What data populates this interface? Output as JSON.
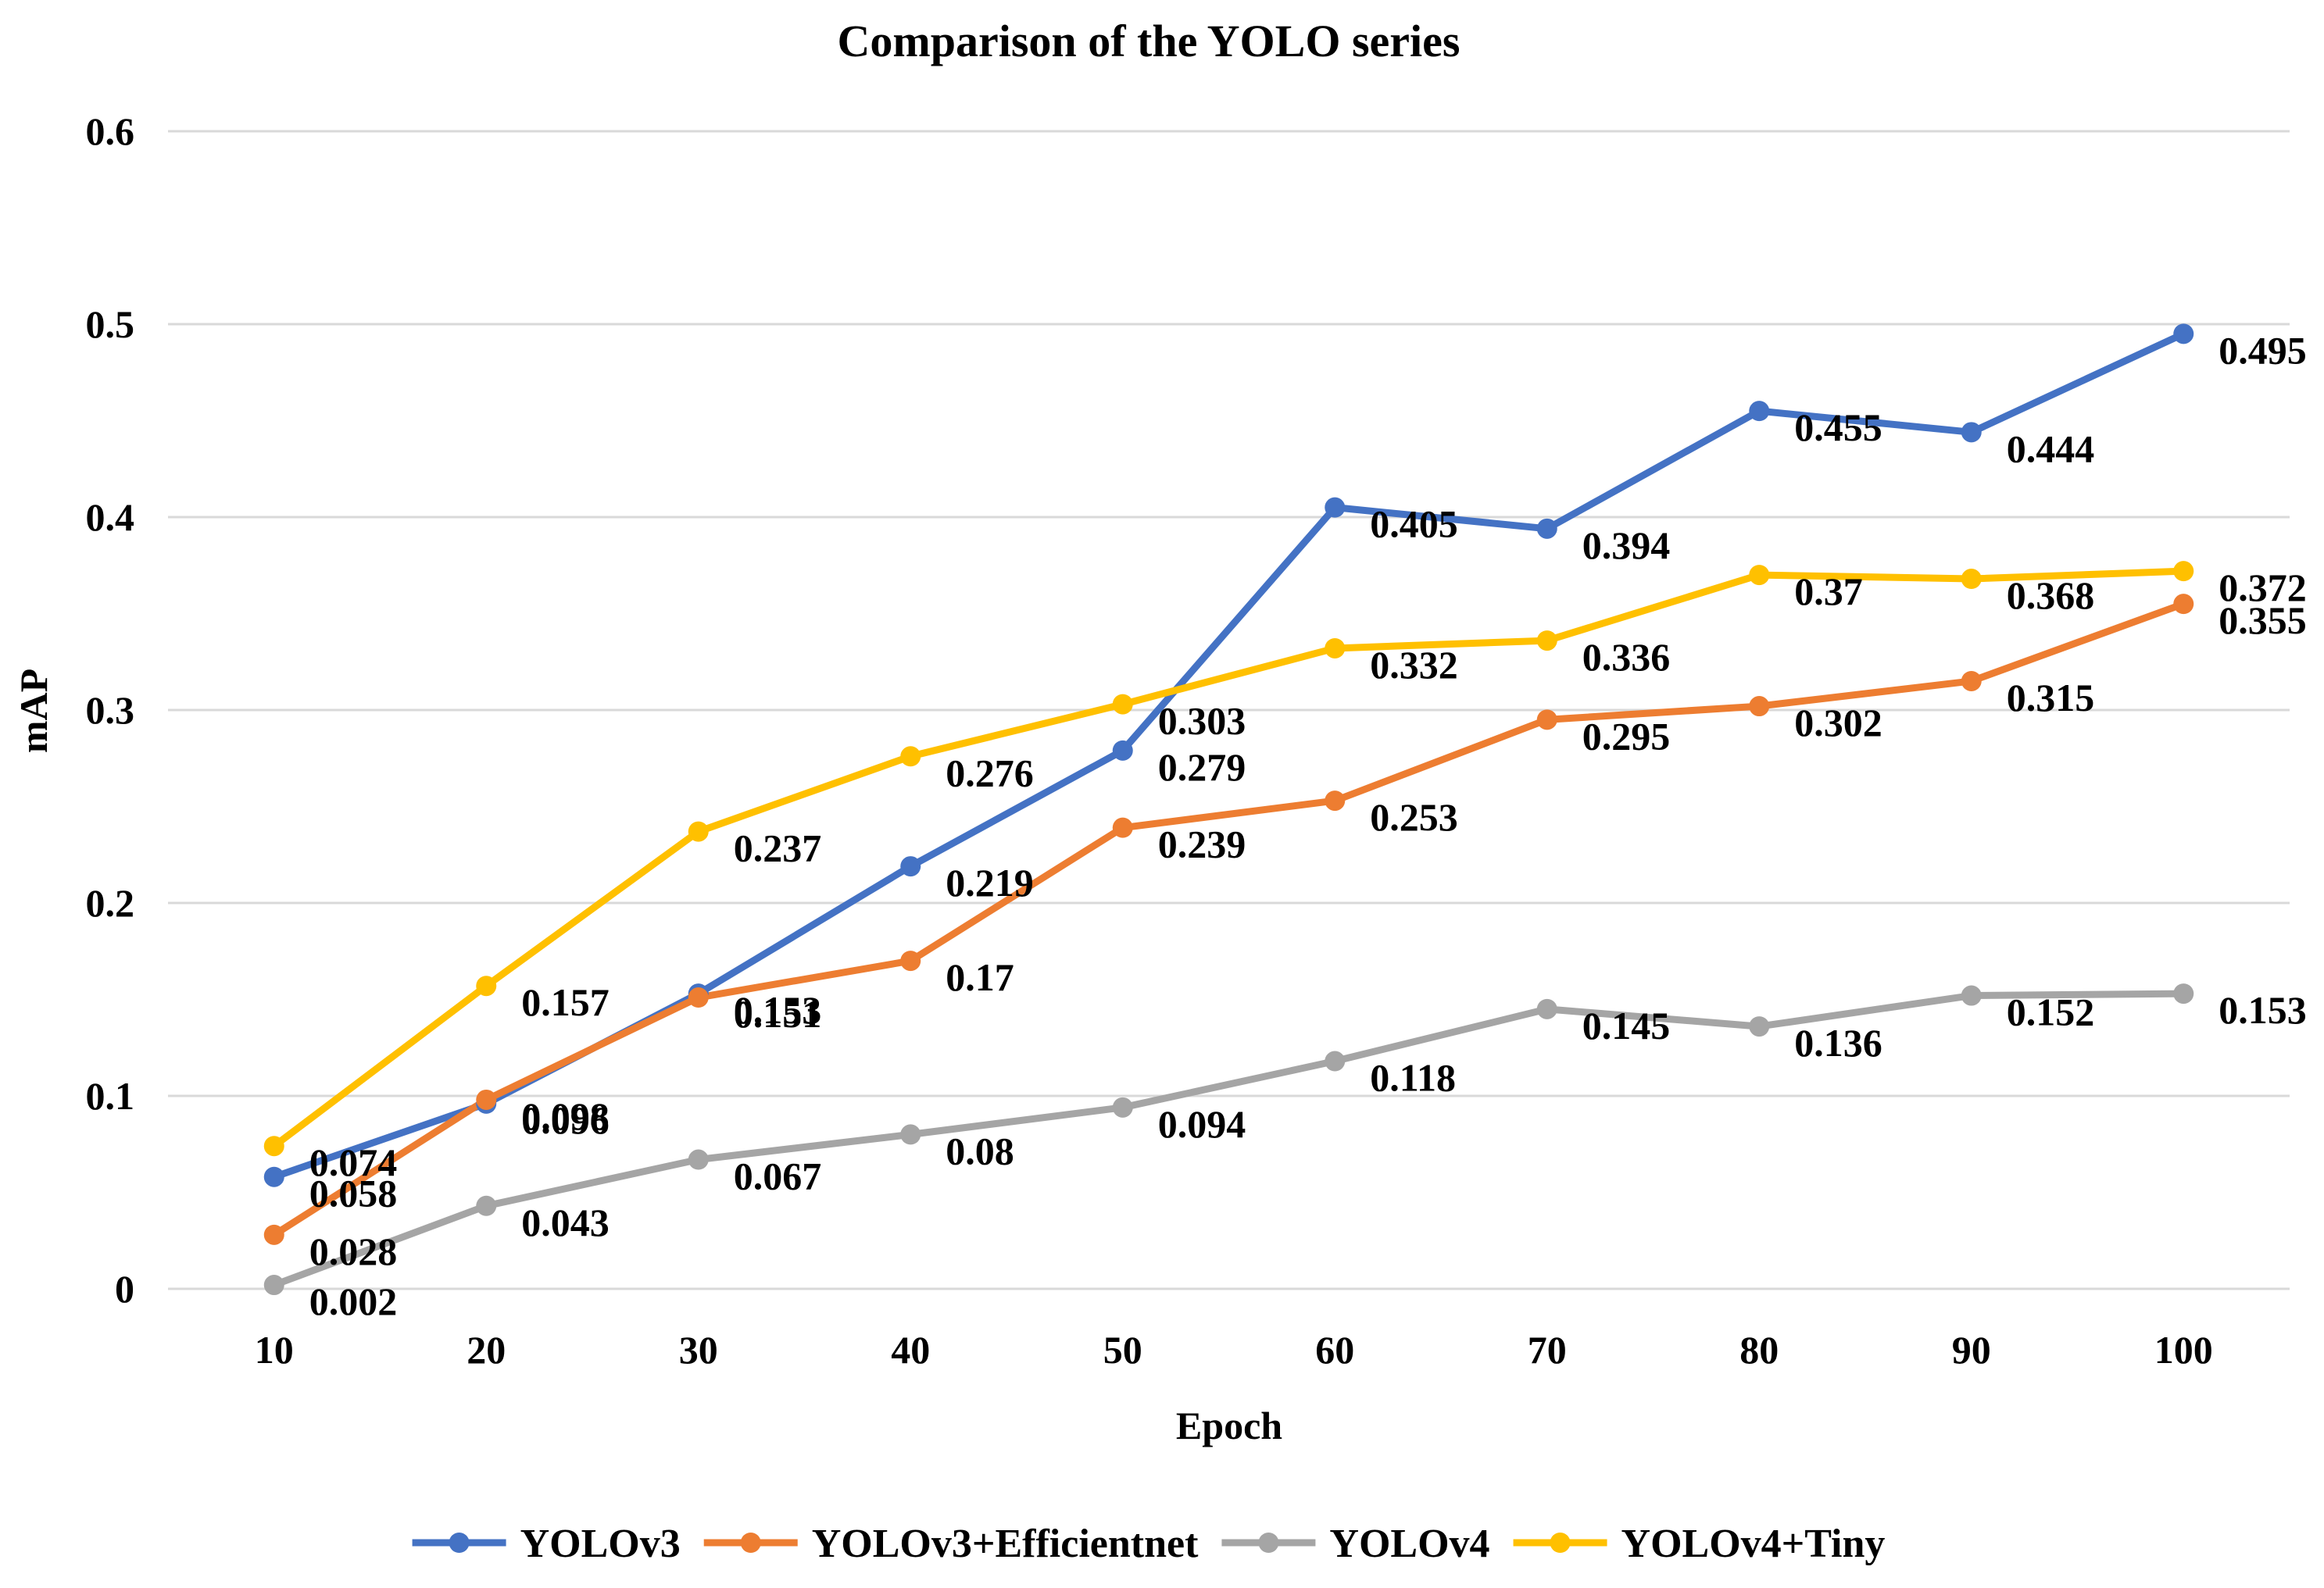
{
  "chart_data": {
    "type": "line",
    "title": "Comparison of the YOLO series",
    "xlabel": "Epoch",
    "ylabel": "mAP",
    "categories": [
      "10",
      "20",
      "30",
      "40",
      "50",
      "60",
      "70",
      "80",
      "90",
      "100"
    ],
    "y_ticks": [
      "0",
      "0.1",
      "0.2",
      "0.3",
      "0.4",
      "0.5",
      "0.6"
    ],
    "ylim": [
      0,
      0.6
    ],
    "grid": true,
    "legend_position": "bottom",
    "series": [
      {
        "name": "YOLOv3",
        "color": "#4472C4",
        "values": [
          0.058,
          0.096,
          0.153,
          0.219,
          0.279,
          0.405,
          0.394,
          0.455,
          0.444,
          0.495
        ],
        "labels": [
          "0.058",
          "0.096",
          "0.153",
          "0.219",
          "0.279",
          "0.405",
          "0.394",
          "0.455",
          "0.444",
          "0.495"
        ]
      },
      {
        "name": "YOLOv3+Efficientnet",
        "color": "#ED7D31",
        "values": [
          0.028,
          0.098,
          0.151,
          0.17,
          0.239,
          0.253,
          0.295,
          0.302,
          0.315,
          0.355
        ],
        "labels": [
          "0.028",
          "0.098",
          "0.151",
          "0.17",
          "0.239",
          "0.253",
          "0.295",
          "0.302",
          "0.315",
          "0.355"
        ]
      },
      {
        "name": "YOLOv4",
        "color": "#A5A5A5",
        "values": [
          0.002,
          0.043,
          0.067,
          0.08,
          0.094,
          0.118,
          0.145,
          0.136,
          0.152,
          0.153
        ],
        "labels": [
          "0.002",
          "0.043",
          "0.067",
          "0.08",
          "0.094",
          "0.118",
          "0.145",
          "0.136",
          "0.152",
          "0.153"
        ]
      },
      {
        "name": "YOLOv4+Tiny",
        "color": "#FFC000",
        "values": [
          0.074,
          0.157,
          0.237,
          0.276,
          0.303,
          0.332,
          0.336,
          0.37,
          0.368,
          0.372
        ],
        "labels": [
          "0.074",
          "0.157",
          "0.237",
          "0.276",
          "0.303",
          "0.332",
          "0.336",
          "0.37",
          "0.368",
          "0.372"
        ]
      }
    ]
  }
}
